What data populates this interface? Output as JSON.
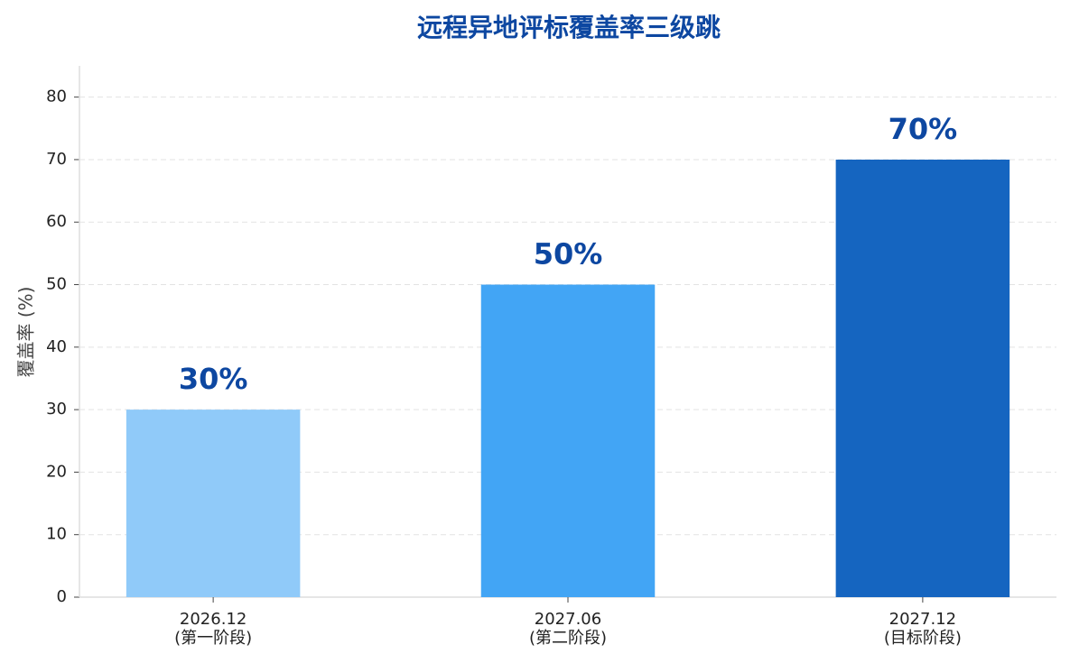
{
  "chart_data": {
    "type": "bar",
    "title": "远程异地评标覆盖率三级跳",
    "y_label": "覆盖率 (%)",
    "categories": [
      "2026.12\n(第一阶段)",
      "2027.06\n(第二阶段)",
      "2027.12\n(目标阶段)"
    ],
    "values": [
      30,
      50,
      70
    ],
    "value_labels": [
      "30%",
      "50%",
      "70%"
    ],
    "colors": [
      "#90caf9",
      "#42a5f5",
      "#1565c0"
    ],
    "ylim": [
      0,
      85
    ],
    "yticks": [
      0,
      10,
      20,
      30,
      40,
      50,
      60,
      70,
      80
    ],
    "grid": true
  }
}
